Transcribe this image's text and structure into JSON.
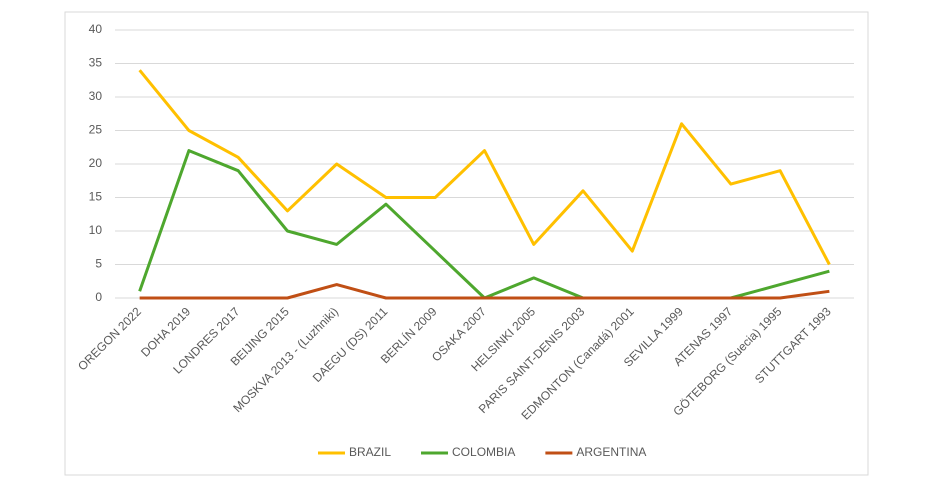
{
  "chart_data": {
    "type": "line",
    "categories": [
      "OREGON 2022",
      "DOHA 2019",
      "LONDRES 2017",
      "BEIJING 2015",
      "MOSKVA 2013 - (Luzhniki)",
      "DAEGU (DS) 2011",
      "BERLÍN 2009",
      "OSAKA 2007",
      "HELSINKI 2005",
      "PARIS SAINT-DENIS 2003",
      "EDMONTON (Canadá) 2001",
      "SEVILLA 1999",
      "ATENAS 1997",
      "GÖTEBORG (Suecia) 1995",
      "STUTTGART 1993"
    ],
    "series": [
      {
        "name": "BRAZIL",
        "color": "#ffc000",
        "values": [
          34,
          25,
          21,
          13,
          20,
          15,
          15,
          22,
          8,
          16,
          7,
          26,
          17,
          19,
          5
        ]
      },
      {
        "name": "COLOMBIA",
        "color": "#4ea72e",
        "values": [
          1,
          22,
          19,
          10,
          8,
          14,
          7,
          0,
          3,
          0,
          0,
          0,
          0,
          2,
          4
        ]
      },
      {
        "name": "ARGENTINA",
        "color": "#c04f15",
        "values": [
          0,
          0,
          0,
          0,
          2,
          0,
          0,
          0,
          0,
          0,
          0,
          0,
          0,
          0,
          1
        ]
      }
    ],
    "ylim": [
      0,
      40
    ],
    "yticks": [
      0,
      5,
      10,
      15,
      20,
      25,
      30,
      35,
      40
    ],
    "grid": true,
    "legend": "bottom"
  }
}
